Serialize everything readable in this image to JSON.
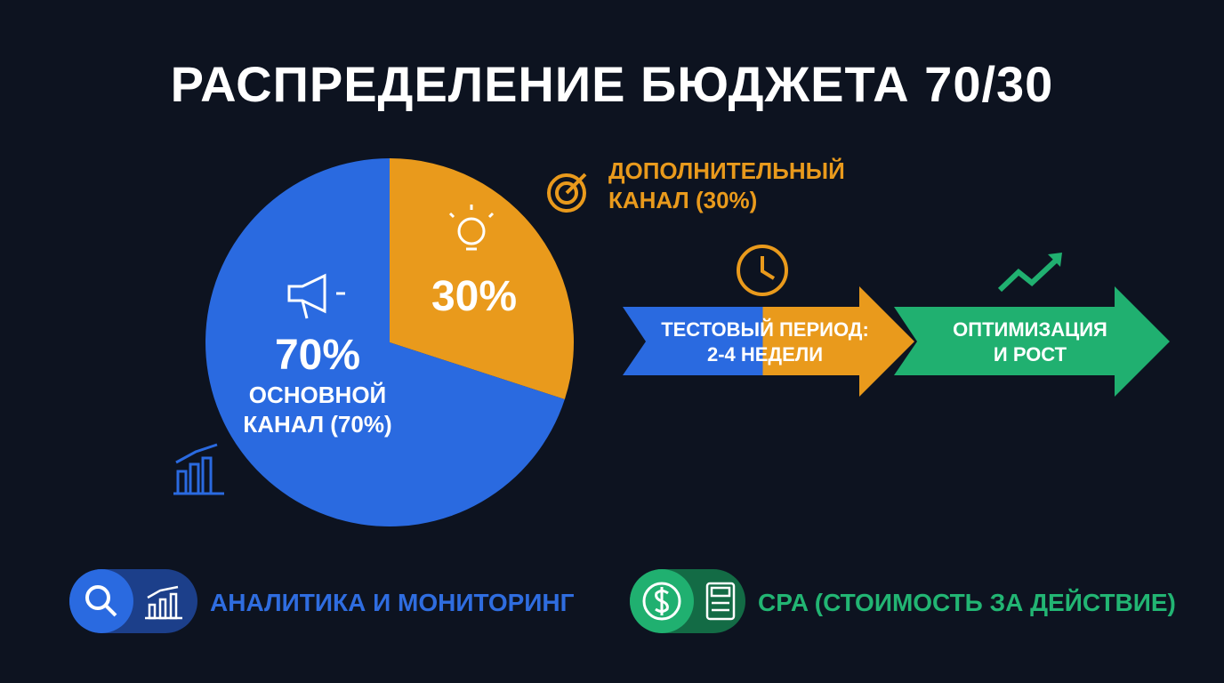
{
  "chart_data": {
    "type": "pie",
    "title": "РАСПРЕДЕЛЕНИЕ БЮДЖЕТА 70/30",
    "categories": [
      "ДОПОЛНИТЕЛЬНЫЙ КАНАЛ (30%)",
      "ОСНОВНОЙ КАНАЛ (70%)"
    ],
    "values": [
      30,
      70
    ],
    "value_labels": [
      "30%",
      "70%"
    ],
    "colors": [
      "#e99a1c",
      "#2a6ae0"
    ],
    "annotations": [
      "ТЕСТОВЫЙ ПЕРИОД: 2-4 НЕДЕЛИ",
      "ОПТИМИЗАЦИЯ И РОСТ",
      "АНАЛИТИКА И МОНИТОРИНГ",
      "CPA (СТОИМОСТЬ ЗА ДЕЙСТВИЕ)"
    ]
  }
}
